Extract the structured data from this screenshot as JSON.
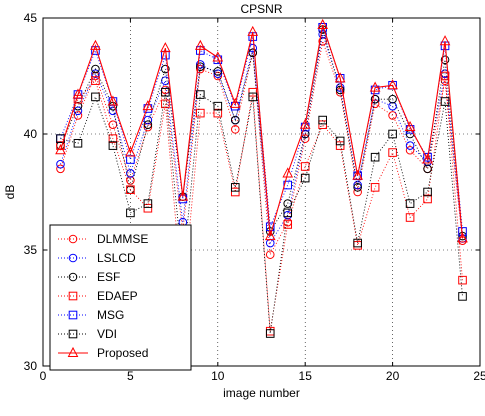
{
  "chart_data": {
    "type": "line",
    "title": "CPSNR",
    "xlabel": "image number",
    "ylabel": "dB",
    "xlim": [
      0,
      25
    ],
    "ylim": [
      30,
      45
    ],
    "xticks": [
      0,
      5,
      10,
      15,
      20,
      25
    ],
    "yticks": [
      30,
      35,
      40,
      45
    ],
    "grid": true,
    "legend_position": "bottom-left",
    "x": [
      1,
      2,
      3,
      4,
      5,
      6,
      7,
      8,
      9,
      10,
      11,
      12,
      13,
      14,
      15,
      16,
      17,
      18,
      19,
      20,
      21,
      22,
      23,
      24
    ],
    "series": [
      {
        "name": "DLMMSE",
        "color": "#ff0000",
        "marker": "circle",
        "style": "dotted",
        "values": [
          38.5,
          40.8,
          42.5,
          40.4,
          38.0,
          40.3,
          41.9,
          35.8,
          42.8,
          42.5,
          40.2,
          43.5,
          34.8,
          36.2,
          39.8,
          44.0,
          41.8,
          37.5,
          41.3,
          40.8,
          39.3,
          38.5,
          42.3,
          35.4
        ]
      },
      {
        "name": "LSLCD",
        "color": "#0000ff",
        "marker": "circle",
        "style": "dotted",
        "values": [
          38.7,
          41.0,
          42.6,
          41.0,
          38.3,
          40.6,
          42.3,
          36.2,
          43.0,
          42.6,
          40.6,
          43.7,
          35.3,
          36.5,
          40.0,
          44.3,
          42.0,
          37.8,
          41.5,
          41.2,
          39.5,
          38.8,
          42.6,
          35.5
        ]
      },
      {
        "name": "ESF",
        "color": "#000000",
        "marker": "circle",
        "style": "dotted",
        "values": [
          39.5,
          41.2,
          42.8,
          41.2,
          37.6,
          40.4,
          42.8,
          37.3,
          42.9,
          42.7,
          40.6,
          43.5,
          35.8,
          37.0,
          40.0,
          44.5,
          41.9,
          37.7,
          41.5,
          41.5,
          40.0,
          38.5,
          43.2,
          35.6
        ]
      },
      {
        "name": "EDAEP",
        "color": "#ff0000",
        "marker": "square",
        "style": "dotted",
        "values": [
          39.5,
          41.5,
          42.3,
          39.8,
          37.6,
          36.8,
          41.3,
          32.8,
          40.9,
          40.9,
          37.5,
          41.8,
          31.5,
          36.1,
          38.6,
          40.4,
          39.5,
          35.2,
          37.7,
          39.2,
          36.4,
          37.2,
          42.5,
          33.7
        ]
      },
      {
        "name": "MSG",
        "color": "#0000ff",
        "marker": "square",
        "style": "dotted",
        "values": [
          39.8,
          41.7,
          43.6,
          41.4,
          38.9,
          41.1,
          43.4,
          37.2,
          43.6,
          43.2,
          41.2,
          44.2,
          36.0,
          37.8,
          40.3,
          44.6,
          42.4,
          38.2,
          41.9,
          42.1,
          40.2,
          39.0,
          43.8,
          35.8
        ]
      },
      {
        "name": "VDI",
        "color": "#000000",
        "marker": "square",
        "style": "dotted",
        "values": [
          39.8,
          39.6,
          41.6,
          39.5,
          36.6,
          37.0,
          41.8,
          34.1,
          41.7,
          41.2,
          37.7,
          41.6,
          31.4,
          36.6,
          38.1,
          40.6,
          39.7,
          35.3,
          39.0,
          40.0,
          37.0,
          37.5,
          41.4,
          33.0
        ]
      },
      {
        "name": "Proposed",
        "color": "#ff0000",
        "marker": "triangle",
        "style": "solid",
        "values": [
          39.3,
          41.7,
          43.8,
          41.4,
          39.2,
          41.2,
          43.7,
          37.3,
          43.8,
          43.3,
          41.3,
          44.4,
          35.6,
          38.3,
          40.4,
          44.7,
          42.4,
          38.2,
          42.0,
          42.1,
          40.3,
          38.9,
          44.0,
          35.5
        ]
      }
    ]
  }
}
